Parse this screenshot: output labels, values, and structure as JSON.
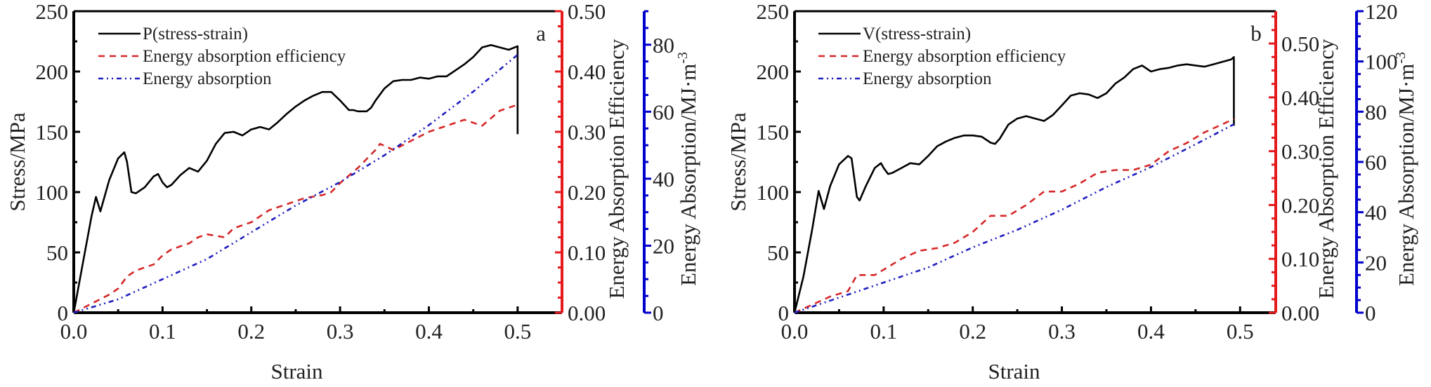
{
  "chart_data": [
    {
      "type": "line",
      "panel_label": "a",
      "xlabel": "Strain",
      "ylabel": "Stress/MPa",
      "y2label": "Energy Absorption Efficiency",
      "y3label": "Energy Absorption/MJ·m",
      "y3label_sup": "-3",
      "xlim": [
        0,
        0.55
      ],
      "ylim": [
        0,
        250
      ],
      "y2lim": [
        0,
        0.5
      ],
      "y3lim": [
        0,
        90
      ],
      "xticks": [
        "0.0",
        "0.1",
        "0.2",
        "0.3",
        "0.4",
        "0.5"
      ],
      "yticks": [
        "0",
        "50",
        "100",
        "150",
        "200",
        "250"
      ],
      "y2ticks": [
        "0.00",
        "0.10",
        "0.20",
        "0.30",
        "0.40",
        "0.50"
      ],
      "y3ticks": [
        "0",
        "20",
        "40",
        "60",
        "80"
      ],
      "legend": [
        "P(stress-strain)",
        "Energy absorption efficiency",
        "Energy absorption"
      ],
      "legend_position": "top-left",
      "series": [
        {
          "name": "P(stress-strain)",
          "axis": "y",
          "color": "#000000",
          "x": [
            0,
            0.01,
            0.02,
            0.025,
            0.03,
            0.04,
            0.05,
            0.057,
            0.06,
            0.065,
            0.07,
            0.08,
            0.09,
            0.095,
            0.1,
            0.105,
            0.11,
            0.12,
            0.13,
            0.14,
            0.15,
            0.16,
            0.17,
            0.18,
            0.19,
            0.2,
            0.21,
            0.22,
            0.23,
            0.24,
            0.25,
            0.26,
            0.27,
            0.28,
            0.29,
            0.3,
            0.31,
            0.315,
            0.32,
            0.33,
            0.335,
            0.34,
            0.35,
            0.36,
            0.37,
            0.38,
            0.39,
            0.4,
            0.41,
            0.42,
            0.43,
            0.44,
            0.45,
            0.46,
            0.47,
            0.48,
            0.49,
            0.5,
            0.5
          ],
          "y": [
            0,
            40,
            80,
            96,
            84,
            110,
            128,
            133,
            125,
            100,
            99,
            104,
            113,
            115,
            108,
            104,
            106,
            114,
            120,
            117,
            126,
            140,
            149,
            150,
            147,
            152,
            154,
            152,
            158,
            165,
            171,
            176,
            180,
            183,
            183,
            176,
            168,
            168,
            167,
            167,
            170,
            176,
            186,
            192,
            193,
            193,
            195,
            194,
            196,
            196,
            201,
            206,
            212,
            220,
            222,
            220,
            218,
            221,
            148
          ]
        },
        {
          "name": "Energy absorption efficiency",
          "axis": "y2",
          "color": "#d62728",
          "x": [
            0,
            0.02,
            0.04,
            0.05,
            0.06,
            0.07,
            0.09,
            0.1,
            0.11,
            0.13,
            0.14,
            0.15,
            0.17,
            0.18,
            0.2,
            0.22,
            0.24,
            0.26,
            0.28,
            0.29,
            0.3,
            0.32,
            0.34,
            0.345,
            0.36,
            0.38,
            0.4,
            0.42,
            0.44,
            0.46,
            0.48,
            0.5
          ],
          "y": [
            0,
            0.015,
            0.03,
            0.04,
            0.06,
            0.07,
            0.08,
            0.095,
            0.105,
            0.115,
            0.125,
            0.13,
            0.125,
            0.14,
            0.15,
            0.17,
            0.18,
            0.19,
            0.195,
            0.2,
            0.215,
            0.24,
            0.27,
            0.28,
            0.27,
            0.285,
            0.3,
            0.31,
            0.32,
            0.31,
            0.335,
            0.345
          ]
        },
        {
          "name": "Energy absorption",
          "axis": "y3",
          "color": "#1f1fbf",
          "x": [
            0,
            0.05,
            0.1,
            0.15,
            0.2,
            0.25,
            0.3,
            0.35,
            0.4,
            0.45,
            0.5
          ],
          "y": [
            0,
            4,
            10,
            16,
            24,
            32,
            39,
            47,
            56,
            66,
            77
          ]
        }
      ]
    },
    {
      "type": "line",
      "panel_label": "b",
      "xlabel": "Strain",
      "ylabel": "Stress/MPa",
      "y2label": "Energy Absorption Efficiency",
      "y3label": "Energy Absorption/MJ·m",
      "y3label_sup": "-3",
      "xlim": [
        0,
        0.54
      ],
      "ylim": [
        0,
        250
      ],
      "y2lim": [
        0,
        0.56
      ],
      "y3lim": [
        0,
        120
      ],
      "xticks": [
        "0.0",
        "0.1",
        "0.2",
        "0.3",
        "0.4",
        "0.5"
      ],
      "yticks": [
        "0",
        "50",
        "100",
        "150",
        "200",
        "250"
      ],
      "y2ticks": [
        "0.00",
        "0.10",
        "0.20",
        "0.30",
        "0.40",
        "0.50"
      ],
      "y3ticks": [
        "0",
        "20",
        "40",
        "60",
        "80",
        "100",
        "120"
      ],
      "legend": [
        "V(stress-strain)",
        "Energy absorption efficiency",
        "Energy absorption"
      ],
      "legend_position": "top-left",
      "series": [
        {
          "name": "V(stress-strain)",
          "axis": "y",
          "color": "#000000",
          "x": [
            0,
            0.01,
            0.02,
            0.027,
            0.033,
            0.04,
            0.05,
            0.06,
            0.064,
            0.07,
            0.073,
            0.08,
            0.09,
            0.097,
            0.1,
            0.105,
            0.11,
            0.12,
            0.13,
            0.14,
            0.15,
            0.16,
            0.17,
            0.18,
            0.19,
            0.2,
            0.21,
            0.22,
            0.225,
            0.23,
            0.24,
            0.25,
            0.26,
            0.27,
            0.28,
            0.29,
            0.3,
            0.31,
            0.32,
            0.33,
            0.34,
            0.35,
            0.36,
            0.37,
            0.38,
            0.39,
            0.4,
            0.41,
            0.42,
            0.43,
            0.44,
            0.45,
            0.46,
            0.47,
            0.48,
            0.49,
            0.493,
            0.493
          ],
          "y": [
            0,
            30,
            70,
            101,
            86,
            105,
            123,
            130,
            128,
            96,
            93,
            105,
            120,
            124,
            120,
            115,
            116,
            120,
            124,
            123,
            130,
            138,
            142,
            145,
            147,
            147,
            146,
            141,
            140,
            144,
            156,
            161,
            163,
            161,
            159,
            164,
            172,
            180,
            182,
            181,
            178,
            182,
            190,
            195,
            202,
            205,
            200,
            202,
            203,
            205,
            206,
            205,
            204,
            206,
            208,
            210,
            212,
            155
          ]
        },
        {
          "name": "Energy absorption efficiency",
          "axis": "y2",
          "color": "#d62728",
          "x": [
            0,
            0.02,
            0.04,
            0.05,
            0.06,
            0.07,
            0.08,
            0.09,
            0.1,
            0.12,
            0.14,
            0.16,
            0.18,
            0.2,
            0.22,
            0.24,
            0.26,
            0.28,
            0.3,
            0.32,
            0.34,
            0.36,
            0.38,
            0.4,
            0.42,
            0.44,
            0.46,
            0.48,
            0.493
          ],
          "y": [
            0,
            0.015,
            0.03,
            0.035,
            0.04,
            0.07,
            0.07,
            0.07,
            0.08,
            0.1,
            0.115,
            0.12,
            0.13,
            0.15,
            0.18,
            0.18,
            0.2,
            0.225,
            0.225,
            0.24,
            0.26,
            0.265,
            0.265,
            0.275,
            0.3,
            0.315,
            0.335,
            0.35,
            0.36
          ]
        },
        {
          "name": "Energy absorption",
          "axis": "y3",
          "color": "#1f1fbf",
          "x": [
            0,
            0.05,
            0.1,
            0.15,
            0.2,
            0.25,
            0.3,
            0.35,
            0.4,
            0.45,
            0.493
          ],
          "y": [
            0,
            6,
            12,
            18,
            26,
            33,
            41,
            50,
            58,
            67,
            75
          ]
        }
      ]
    }
  ]
}
